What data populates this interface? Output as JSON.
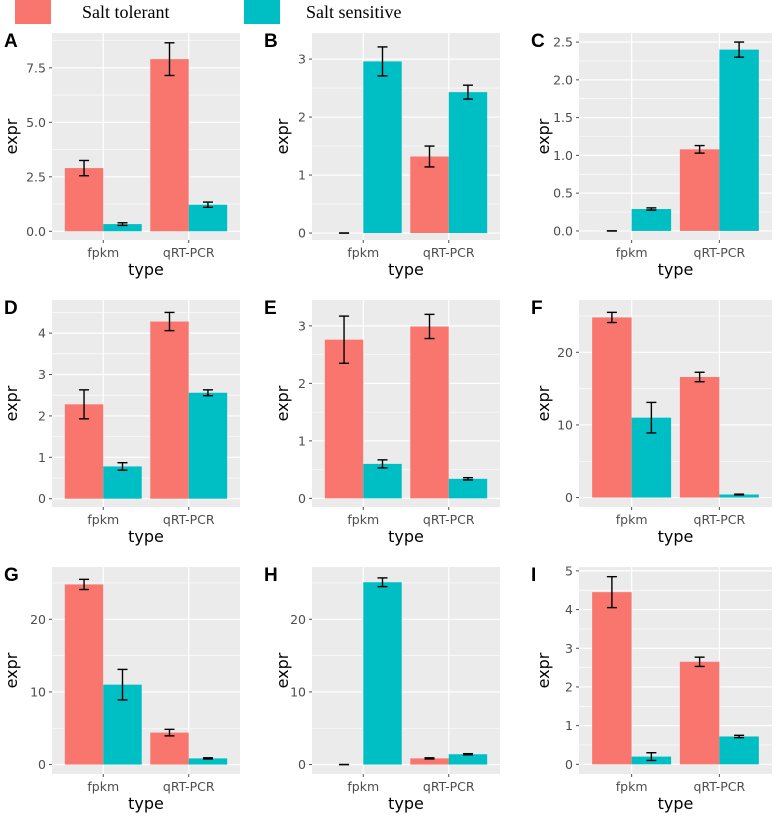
{
  "legend": {
    "items": [
      {
        "label": "Salt tolerant",
        "color": "#F8766D"
      },
      {
        "label": "Salt sensitive",
        "color": "#00BFC4"
      }
    ]
  },
  "colors": {
    "panel_bg": "#EBEBEB",
    "grid": "#FFFFFF",
    "tick": "#4D4D4D"
  },
  "chart_data": [
    {
      "panel": "A",
      "type": "bar",
      "categories": [
        "fpkm",
        "qRT-PCR"
      ],
      "xlabel": "type",
      "ylabel": "expr",
      "ylim": [
        -0.4,
        9.1
      ],
      "yticks": [
        0,
        2.5,
        5,
        7.5
      ],
      "ytick_labels": [
        "0.0",
        "2.5",
        "5.0",
        "7.5"
      ],
      "series": [
        {
          "name": "Salt tolerant",
          "values": [
            2.9,
            7.9
          ],
          "err": [
            0.35,
            0.75
          ]
        },
        {
          "name": "Salt sensitive",
          "values": [
            0.33,
            1.22
          ],
          "err": [
            0.06,
            0.12
          ]
        }
      ]
    },
    {
      "panel": "B",
      "type": "bar",
      "categories": [
        "fpkm",
        "qRT-PCR"
      ],
      "xlabel": "type",
      "ylabel": "expr",
      "ylim": [
        -0.12,
        3.45
      ],
      "yticks": [
        0,
        1,
        2,
        3
      ],
      "ytick_labels": [
        "0",
        "1",
        "2",
        "3"
      ],
      "series": [
        {
          "name": "Salt tolerant",
          "values": [
            0.0,
            1.32
          ],
          "err": [
            0.0,
            0.18
          ]
        },
        {
          "name": "Salt sensitive",
          "values": [
            2.96,
            2.43
          ],
          "err": [
            0.25,
            0.12
          ]
        }
      ]
    },
    {
      "panel": "C",
      "type": "bar",
      "categories": [
        "fpkm",
        "qRT-PCR"
      ],
      "xlabel": "type",
      "ylabel": "expr",
      "ylim": [
        -0.12,
        2.62
      ],
      "yticks": [
        0,
        0.5,
        1,
        1.5,
        2,
        2.5
      ],
      "ytick_labels": [
        "0.0",
        "0.5",
        "1.0",
        "1.5",
        "2.0",
        "2.5"
      ],
      "series": [
        {
          "name": "Salt tolerant",
          "values": [
            0.0,
            1.08
          ],
          "err": [
            0.0,
            0.05
          ]
        },
        {
          "name": "Salt sensitive",
          "values": [
            0.29,
            2.4
          ],
          "err": [
            0.015,
            0.1
          ]
        }
      ]
    },
    {
      "panel": "D",
      "type": "bar",
      "categories": [
        "fpkm",
        "qRT-PCR"
      ],
      "xlabel": "type",
      "ylabel": "expr",
      "ylim": [
        -0.2,
        4.8
      ],
      "yticks": [
        0,
        1,
        2,
        3,
        4
      ],
      "ytick_labels": [
        "0",
        "1",
        "2",
        "3",
        "4"
      ],
      "series": [
        {
          "name": "Salt tolerant",
          "values": [
            2.28,
            4.28
          ],
          "err": [
            0.35,
            0.22
          ]
        },
        {
          "name": "Salt sensitive",
          "values": [
            0.78,
            2.56
          ],
          "err": [
            0.09,
            0.07
          ]
        }
      ]
    },
    {
      "panel": "E",
      "type": "bar",
      "categories": [
        "fpkm",
        "qRT-PCR"
      ],
      "xlabel": "type",
      "ylabel": "expr",
      "ylim": [
        -0.15,
        3.45
      ],
      "yticks": [
        0,
        1,
        2,
        3
      ],
      "ytick_labels": [
        "0",
        "1",
        "2",
        "3"
      ],
      "series": [
        {
          "name": "Salt tolerant",
          "values": [
            2.76,
            2.99
          ],
          "err": [
            0.41,
            0.21
          ]
        },
        {
          "name": "Salt sensitive",
          "values": [
            0.6,
            0.34
          ],
          "err": [
            0.07,
            0.02
          ]
        }
      ]
    },
    {
      "panel": "F",
      "type": "bar",
      "categories": [
        "fpkm",
        "qRT-PCR"
      ],
      "xlabel": "type",
      "ylabel": "expr",
      "ylim": [
        -1.3,
        27.2
      ],
      "yticks": [
        0,
        10,
        20
      ],
      "ytick_labels": [
        "0",
        "10",
        "20"
      ],
      "series": [
        {
          "name": "Salt tolerant",
          "values": [
            24.8,
            16.6
          ],
          "err": [
            0.7,
            0.65
          ]
        },
        {
          "name": "Salt sensitive",
          "values": [
            11.0,
            0.42
          ],
          "err": [
            2.1,
            0.05
          ]
        }
      ]
    },
    {
      "panel": "G",
      "type": "bar",
      "categories": [
        "fpkm",
        "qRT-PCR"
      ],
      "xlabel": "type",
      "ylabel": "expr",
      "ylim": [
        -1.3,
        27.2
      ],
      "yticks": [
        0,
        10,
        20
      ],
      "ytick_labels": [
        "0",
        "10",
        "20"
      ],
      "series": [
        {
          "name": "Salt tolerant",
          "values": [
            24.8,
            4.4
          ],
          "err": [
            0.7,
            0.45
          ]
        },
        {
          "name": "Salt sensitive",
          "values": [
            11.0,
            0.85
          ],
          "err": [
            2.1,
            0.08
          ]
        }
      ]
    },
    {
      "panel": "H",
      "type": "bar",
      "categories": [
        "fpkm",
        "qRT-PCR"
      ],
      "xlabel": "type",
      "ylabel": "expr",
      "ylim": [
        -1.3,
        27.2
      ],
      "yticks": [
        0,
        10,
        20
      ],
      "ytick_labels": [
        "0",
        "10",
        "20"
      ],
      "series": [
        {
          "name": "Salt tolerant",
          "values": [
            0.0,
            0.85
          ],
          "err": [
            0.0,
            0.08
          ]
        },
        {
          "name": "Salt sensitive",
          "values": [
            25.1,
            1.42
          ],
          "err": [
            0.6,
            0.08
          ]
        }
      ]
    },
    {
      "panel": "I",
      "type": "bar",
      "categories": [
        "fpkm",
        "qRT-PCR"
      ],
      "xlabel": "type",
      "ylabel": "expr",
      "ylim": [
        -0.25,
        5.1
      ],
      "yticks": [
        0,
        1,
        2,
        3,
        4,
        5
      ],
      "ytick_labels": [
        "0",
        "1",
        "2",
        "3",
        "4",
        "5"
      ],
      "series": [
        {
          "name": "Salt tolerant",
          "values": [
            4.45,
            2.65
          ],
          "err": [
            0.4,
            0.12
          ]
        },
        {
          "name": "Salt sensitive",
          "values": [
            0.2,
            0.72
          ],
          "err": [
            0.1,
            0.03
          ]
        }
      ]
    }
  ]
}
